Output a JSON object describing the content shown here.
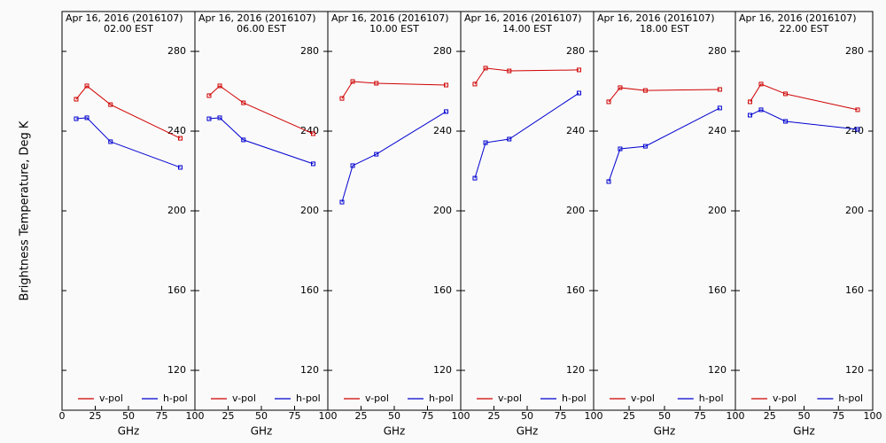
{
  "chart_data": [
    {
      "type": "line",
      "title": "Apr 16, 2016 (2016107)",
      "subtitle": "02.00 EST",
      "xlabel": "GHz",
      "ylabel": "Brightness Temperature, Deg K",
      "x": [
        10.65,
        18.7,
        36.5,
        89
      ],
      "xlim": [
        0,
        100
      ],
      "xticks": [
        0,
        25,
        50,
        75,
        100
      ],
      "ylim": [
        100,
        300
      ],
      "yticks": [
        120,
        160,
        200,
        240,
        280
      ],
      "legend": "lower",
      "series": [
        {
          "name": "v-pol",
          "color": "#d00000",
          "values": [
            256.0,
            262.7,
            253.3,
            236.4
          ]
        },
        {
          "name": "h-pol",
          "color": "#0000d0",
          "values": [
            246.2,
            246.7,
            234.7,
            221.8
          ]
        }
      ]
    },
    {
      "type": "line",
      "title": "Apr 16, 2016 (2016107)",
      "subtitle": "06.00 EST",
      "xlabel": "GHz",
      "x": [
        10.65,
        18.7,
        36.5,
        89
      ],
      "xlim": [
        0,
        100
      ],
      "xticks": [
        25,
        50,
        75,
        100
      ],
      "ylim": [
        100,
        300
      ],
      "yticks": [
        120,
        160,
        200,
        240,
        280
      ],
      "legend": "lower",
      "series": [
        {
          "name": "v-pol",
          "color": "#d00000",
          "values": [
            257.8,
            262.7,
            254.2,
            238.7
          ]
        },
        {
          "name": "h-pol",
          "color": "#0000d0",
          "values": [
            246.2,
            246.7,
            235.6,
            223.6
          ]
        }
      ]
    },
    {
      "type": "line",
      "title": "Apr 16, 2016 (2016107)",
      "subtitle": "10.00 EST",
      "xlabel": "GHz",
      "x": [
        10.65,
        18.7,
        36.5,
        89
      ],
      "xlim": [
        0,
        100
      ],
      "xticks": [
        25,
        50,
        75,
        100
      ],
      "ylim": [
        100,
        300
      ],
      "yticks": [
        120,
        160,
        200,
        240,
        280
      ],
      "legend": "lower",
      "series": [
        {
          "name": "v-pol",
          "color": "#d00000",
          "values": [
            256.4,
            264.9,
            264.0,
            263.1
          ]
        },
        {
          "name": "h-pol",
          "color": "#0000d0",
          "values": [
            204.4,
            222.7,
            228.4,
            249.8
          ]
        }
      ]
    },
    {
      "type": "line",
      "title": "Apr 16, 2016 (2016107)",
      "subtitle": "14.00 EST",
      "xlabel": "GHz",
      "x": [
        10.65,
        18.7,
        36.5,
        89
      ],
      "xlim": [
        0,
        100
      ],
      "xticks": [
        25,
        50,
        75,
        100
      ],
      "ylim": [
        100,
        300
      ],
      "yticks": [
        120,
        160,
        200,
        240,
        280
      ],
      "legend": "lower",
      "series": [
        {
          "name": "v-pol",
          "color": "#d00000",
          "values": [
            263.6,
            271.6,
            270.2,
            270.7
          ]
        },
        {
          "name": "h-pol",
          "color": "#0000d0",
          "values": [
            216.4,
            234.2,
            236.0,
            259.1
          ]
        }
      ]
    },
    {
      "type": "line",
      "title": "Apr 16, 2016 (2016107)",
      "subtitle": "18.00 EST",
      "xlabel": "GHz",
      "x": [
        10.65,
        18.7,
        36.5,
        89
      ],
      "xlim": [
        0,
        100
      ],
      "xticks": [
        25,
        50,
        75,
        100
      ],
      "ylim": [
        100,
        300
      ],
      "yticks": [
        120,
        160,
        200,
        240,
        280
      ],
      "legend": "lower",
      "series": [
        {
          "name": "v-pol",
          "color": "#d00000",
          "values": [
            254.7,
            261.8,
            260.4,
            260.9
          ]
        },
        {
          "name": "h-pol",
          "color": "#0000d0",
          "values": [
            214.7,
            231.1,
            232.4,
            251.6
          ]
        }
      ]
    },
    {
      "type": "line",
      "title": "Apr 16, 2016 (2016107)",
      "subtitle": "22.00 EST",
      "xlabel": "GHz",
      "x": [
        10.65,
        18.7,
        36.5,
        89
      ],
      "xlim": [
        0,
        100
      ],
      "xticks": [
        25,
        50,
        75,
        100
      ],
      "ylim": [
        100,
        300
      ],
      "yticks": [
        120,
        160,
        200,
        240,
        280
      ],
      "legend": "lower",
      "series": [
        {
          "name": "v-pol",
          "color": "#d00000",
          "values": [
            254.7,
            263.6,
            258.7,
            250.7
          ]
        },
        {
          "name": "h-pol",
          "color": "#0000d0",
          "values": [
            248.0,
            250.7,
            244.9,
            240.9
          ]
        }
      ]
    }
  ]
}
